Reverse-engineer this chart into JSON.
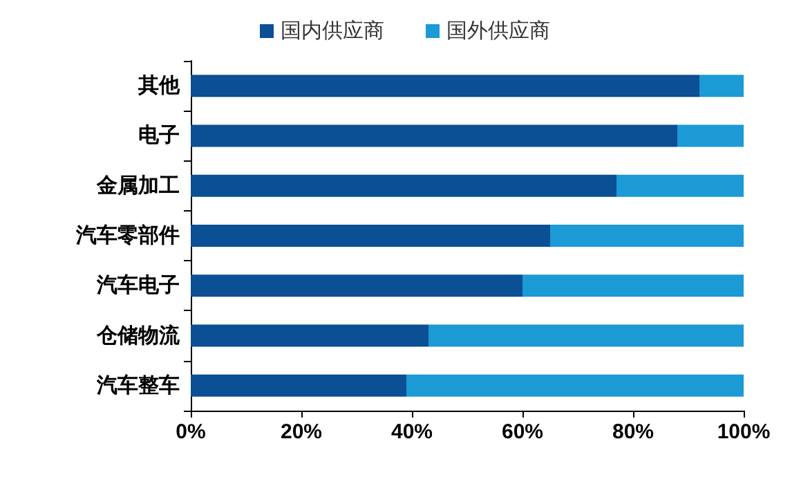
{
  "chart_data": {
    "type": "bar",
    "orientation": "horizontal",
    "stacked": true,
    "categories": [
      "其他",
      "电子",
      "金属加工",
      "汽车零部件",
      "汽车电子",
      "仓储物流",
      "汽车整车"
    ],
    "series": [
      {
        "name": "国内供应商",
        "color": "#0b4f94",
        "values": [
          92,
          88,
          77,
          65,
          60,
          43,
          39
        ]
      },
      {
        "name": "国外供应商",
        "color": "#1b9ad6",
        "values": [
          8,
          12,
          23,
          35,
          40,
          57,
          61
        ]
      }
    ],
    "xlim": [
      0,
      100
    ],
    "xticks": [
      {
        "value": 0,
        "label": "0%"
      },
      {
        "value": 20,
        "label": "20%"
      },
      {
        "value": 40,
        "label": "40%"
      },
      {
        "value": 60,
        "label": "60%"
      },
      {
        "value": 80,
        "label": "80%"
      },
      {
        "value": 100,
        "label": "100%"
      }
    ],
    "grid": false,
    "legend": "top"
  }
}
